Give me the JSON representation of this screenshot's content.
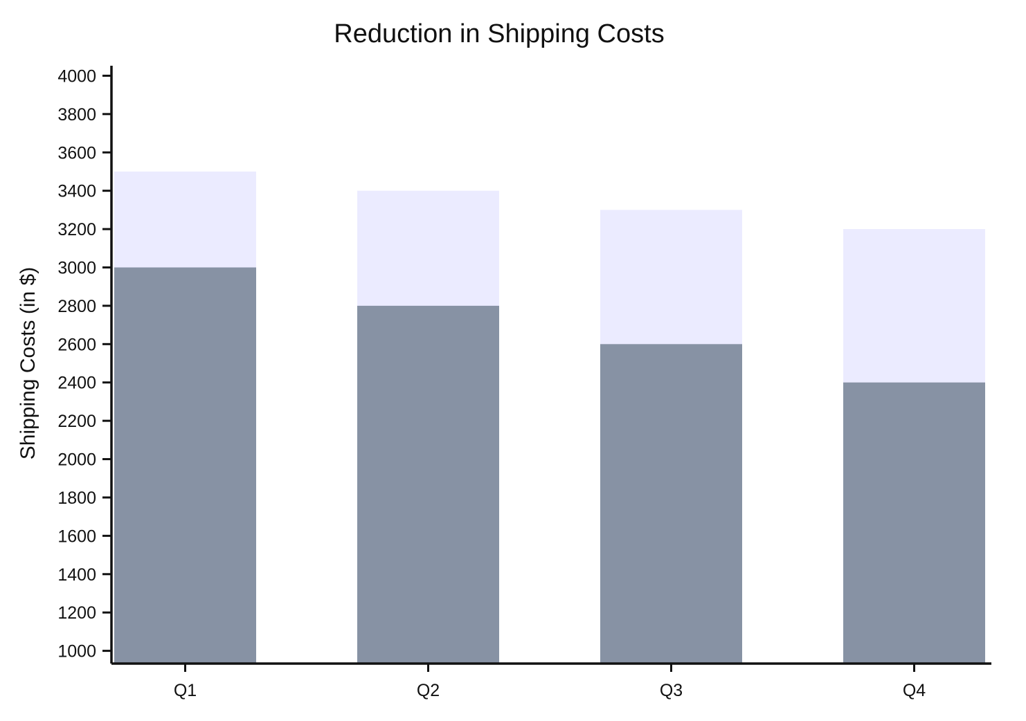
{
  "chart_data": {
    "type": "bar",
    "title": "Reduction in Shipping Costs",
    "xlabel": "",
    "ylabel": "Shipping Costs (in $)",
    "categories": [
      "Q1",
      "Q2",
      "Q3",
      "Q4"
    ],
    "series": [
      {
        "values": [
          3500,
          3400,
          3300,
          3200
        ],
        "color": "#ebebff"
      },
      {
        "values": [
          3000,
          2800,
          2600,
          2400
        ],
        "color": "#8792a4"
      }
    ],
    "ylim": [
      940,
      4050
    ],
    "yticks": [
      1000,
      1200,
      1400,
      1600,
      1800,
      2000,
      2200,
      2400,
      2600,
      2800,
      3000,
      3200,
      3400,
      3600,
      3800,
      4000
    ],
    "grid": false,
    "legend": "none",
    "overlap": true
  }
}
